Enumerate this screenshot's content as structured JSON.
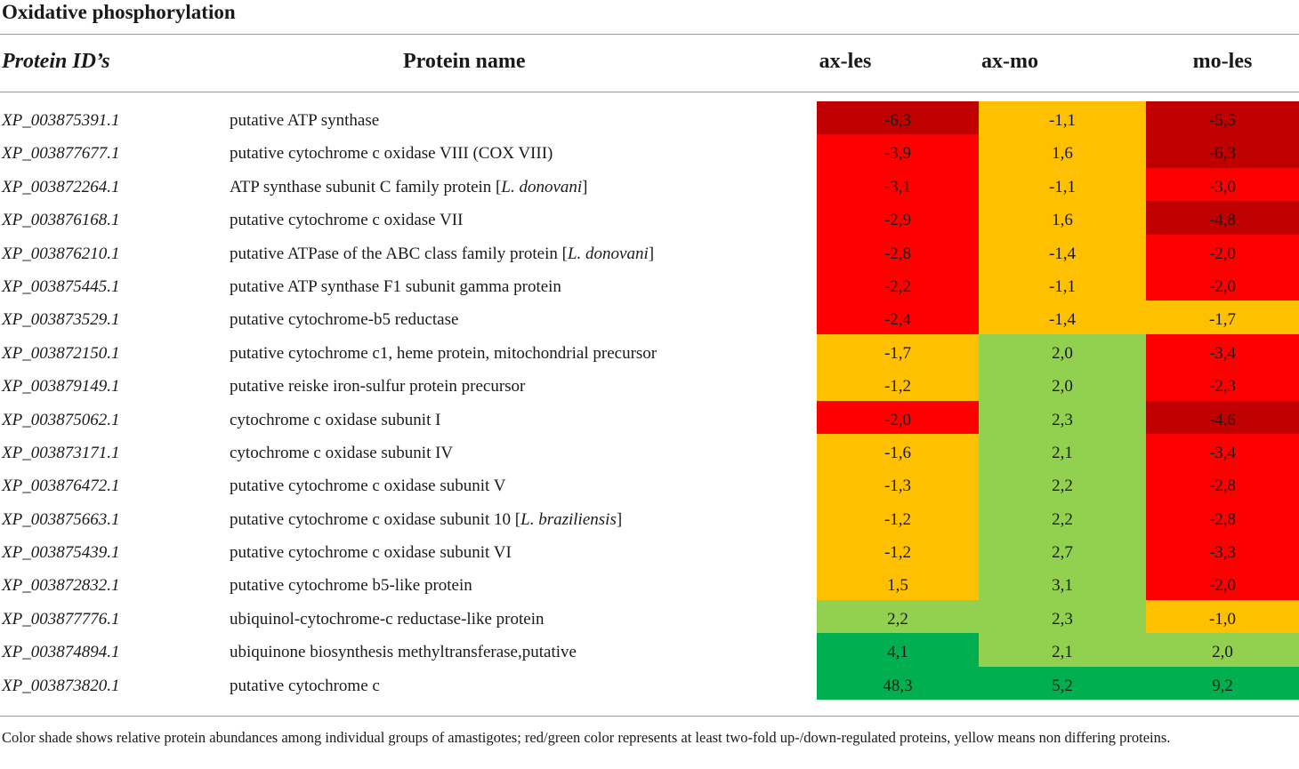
{
  "title": "Oxidative phosphorylation",
  "headers": {
    "id": "Protein ID’s",
    "name": "Protein name",
    "c1": "ax-les",
    "c2": "ax-mo",
    "c3": "mo-les"
  },
  "colors": {
    "dark_red": "#c00000",
    "red": "#ff0000",
    "yellow": "#ffc000",
    "light_green": "#92d050",
    "green": "#00b050"
  },
  "rows": [
    {
      "id": "XP_003875391.1",
      "name": "putative ATP synthase",
      "name_italic": "",
      "name_tail": "",
      "v1": "-6,3",
      "c1": "dark_red",
      "v2": "-1,1",
      "c2": "yellow",
      "v3": "-5,5",
      "c3": "dark_red"
    },
    {
      "id": "XP_003877677.1",
      "name": "putative cytochrome c oxidase VIII (COX VIII)",
      "name_italic": "",
      "name_tail": "",
      "v1": "-3,9",
      "c1": "red",
      "v2": "1,6",
      "c2": "yellow",
      "v3": "-6,3",
      "c3": "dark_red"
    },
    {
      "id": "XP_003872264.1",
      "name": "ATP synthase subunit C family protein [",
      "name_italic": "L. donovani",
      "name_tail": "]",
      "v1": "-3,1",
      "c1": "red",
      "v2": "-1,1",
      "c2": "yellow",
      "v3": "-3,0",
      "c3": "red"
    },
    {
      "id": "XP_003876168.1",
      "name": "putative cytochrome c oxidase VII",
      "name_italic": "",
      "name_tail": "",
      "v1": "-2,9",
      "c1": "red",
      "v2": "1,6",
      "c2": "yellow",
      "v3": "-4,8",
      "c3": "dark_red"
    },
    {
      "id": "XP_003876210.1",
      "name": "putative ATPase of the ABC class family protein [",
      "name_italic": "L. donovani",
      "name_tail": "]",
      "v1": "-2,8",
      "c1": "red",
      "v2": "-1,4",
      "c2": "yellow",
      "v3": "-2,0",
      "c3": "red"
    },
    {
      "id": "XP_003875445.1",
      "name": "putative ATP synthase F1 subunit gamma protein",
      "name_italic": "",
      "name_tail": "",
      "v1": "-2,2",
      "c1": "red",
      "v2": "-1,1",
      "c2": "yellow",
      "v3": "-2,0",
      "c3": "red"
    },
    {
      "id": "XP_003873529.1",
      "name": "putative cytochrome-b5 reductase",
      "name_italic": "",
      "name_tail": "",
      "v1": "-2,4",
      "c1": "red",
      "v2": "-1,4",
      "c2": "yellow",
      "v3": "-1,7",
      "c3": "yellow"
    },
    {
      "id": "XP_003872150.1",
      "name": "putative cytochrome c1, heme protein, mitochondrial precursor",
      "name_italic": "",
      "name_tail": "",
      "v1": "-1,7",
      "c1": "yellow",
      "v2": "2,0",
      "c2": "light_green",
      "v3": "-3,4",
      "c3": "red"
    },
    {
      "id": "XP_003879149.1",
      "name": "putative reiske iron-sulfur protein precursor",
      "name_italic": "",
      "name_tail": "",
      "v1": "-1,2",
      "c1": "yellow",
      "v2": "2,0",
      "c2": "light_green",
      "v3": "-2,3",
      "c3": "red"
    },
    {
      "id": "XP_003875062.1",
      "name": "cytochrome c oxidase subunit I",
      "name_italic": "",
      "name_tail": "",
      "v1": "-2,0",
      "c1": "red",
      "v2": "2,3",
      "c2": "light_green",
      "v3": "-4,6",
      "c3": "dark_red"
    },
    {
      "id": "XP_003873171.1",
      "name": "cytochrome c oxidase subunit IV",
      "name_italic": "",
      "name_tail": "",
      "v1": "-1,6",
      "c1": "yellow",
      "v2": "2,1",
      "c2": "light_green",
      "v3": "-3,4",
      "c3": "red"
    },
    {
      "id": "XP_003876472.1",
      "name": "putative cytochrome c oxidase subunit V",
      "name_italic": "",
      "name_tail": "",
      "v1": "-1,3",
      "c1": "yellow",
      "v2": "2,2",
      "c2": "light_green",
      "v3": "-2,8",
      "c3": "red"
    },
    {
      "id": "XP_003875663.1",
      "name": "putative cytochrome c oxidase subunit 10 [",
      "name_italic": "L. braziliensis",
      "name_tail": "]",
      "v1": "-1,2",
      "c1": "yellow",
      "v2": "2,2",
      "c2": "light_green",
      "v3": "-2,8",
      "c3": "red"
    },
    {
      "id": "XP_003875439.1",
      "name": "putative cytochrome c oxidase subunit VI",
      "name_italic": "",
      "name_tail": "",
      "v1": "-1,2",
      "c1": "yellow",
      "v2": "2,7",
      "c2": "light_green",
      "v3": "-3,3",
      "c3": "red"
    },
    {
      "id": "XP_003872832.1",
      "name": "putative cytochrome b5-like protein",
      "name_italic": "",
      "name_tail": "",
      "v1": "1,5",
      "c1": "yellow",
      "v2": "3,1",
      "c2": "light_green",
      "v3": "-2,0",
      "c3": "red"
    },
    {
      "id": "XP_003877776.1",
      "name": "ubiquinol-cytochrome-c reductase-like protein",
      "name_italic": "",
      "name_tail": "",
      "v1": "2,2",
      "c1": "light_green",
      "v2": "2,3",
      "c2": "light_green",
      "v3": "-1,0",
      "c3": "yellow"
    },
    {
      "id": "XP_003874894.1",
      "name": "ubiquinone biosynthesis methyltransferase,putative",
      "name_italic": "",
      "name_tail": "",
      "v1": "4,1",
      "c1": "green",
      "v2": "2,1",
      "c2": "light_green",
      "v3": "2,0",
      "c3": "light_green"
    },
    {
      "id": "XP_003873820.1",
      "name": "putative cytochrome c",
      "name_italic": "",
      "name_tail": "",
      "v1": "48,3",
      "c1": "green",
      "v2": "5,2",
      "c2": "green",
      "v3": "9,2",
      "c3": "green"
    }
  ],
  "footnote": "Color shade shows relative protein abundances among individual groups of amastigotes; red/green color represents at least two-fold up-/down-regulated proteins, yellow means non differing proteins."
}
